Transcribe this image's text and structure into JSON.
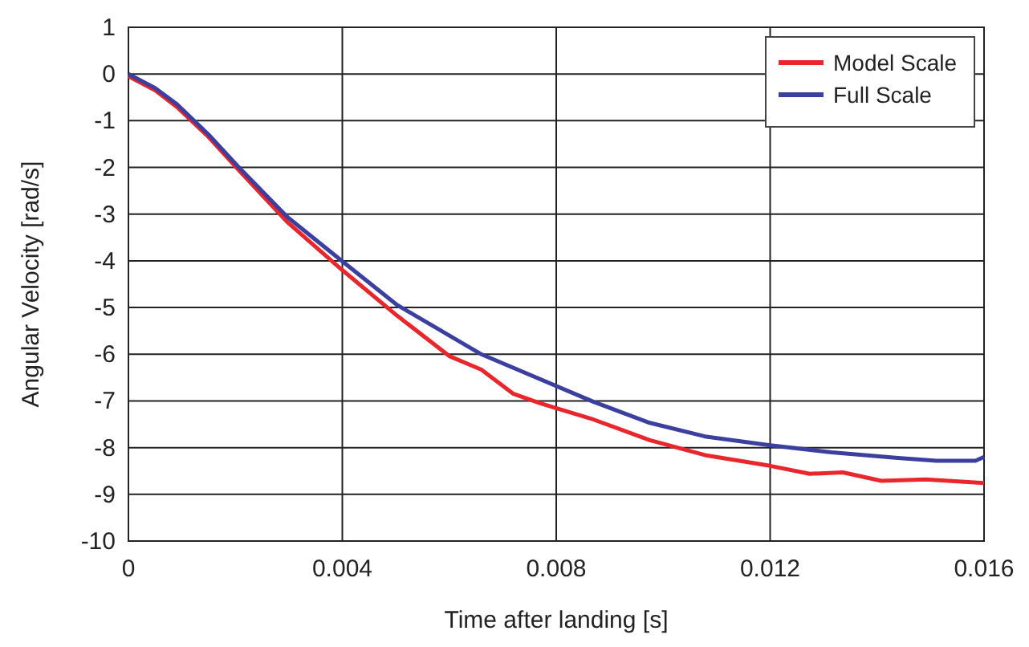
{
  "chart_data": {
    "type": "line",
    "xlabel": "Time after landing [s]",
    "ylabel": "Angular Velocity [rad/s]",
    "xlim": [
      0,
      0.016
    ],
    "xticks": [
      0,
      0.004,
      0.008,
      0.012,
      0.016
    ],
    "ylim": [
      -10,
      1
    ],
    "yticks": [
      1,
      0,
      -1,
      -2,
      -3,
      -4,
      -5,
      -6,
      -7,
      -8,
      -9,
      -10
    ],
    "grid": true,
    "legend": "top right",
    "marker": "none",
    "line_style": "solid",
    "series": [
      {
        "name": "Model Scale",
        "color": "#e8262b",
        "x": [
          0,
          0.0005,
          0.00091,
          0.0015,
          0.00204,
          0.00297,
          0.004,
          0.00503,
          0.006,
          0.0066,
          0.0072,
          0.0077,
          0.0087,
          0.00975,
          0.01078,
          0.012,
          0.01274,
          0.01336,
          0.01408,
          0.01491,
          0.016
        ],
        "values": [
          -0.05,
          -0.35,
          -0.71,
          -1.35,
          -2.03,
          -3.17,
          -4.2,
          -5.18,
          -6.04,
          -6.33,
          -6.85,
          -7.05,
          -7.4,
          -7.84,
          -8.16,
          -8.39,
          -8.56,
          -8.53,
          -8.71,
          -8.68,
          -8.76
        ]
      },
      {
        "name": "Full Scale",
        "color": "#3a3fa0",
        "x": [
          0,
          0.0005,
          0.00091,
          0.0015,
          0.00204,
          0.00297,
          0.004,
          0.00503,
          0.00658,
          0.0087,
          0.00975,
          0.01078,
          0.012,
          0.01315,
          0.01439,
          0.01511,
          0.01584,
          0.016
        ],
        "values": [
          0,
          -0.3,
          -0.65,
          -1.3,
          -1.97,
          -3.06,
          -4.01,
          -4.95,
          -5.99,
          -7.02,
          -7.47,
          -7.76,
          -7.95,
          -8.1,
          -8.22,
          -8.28,
          -8.28,
          -8.2
        ]
      }
    ]
  }
}
